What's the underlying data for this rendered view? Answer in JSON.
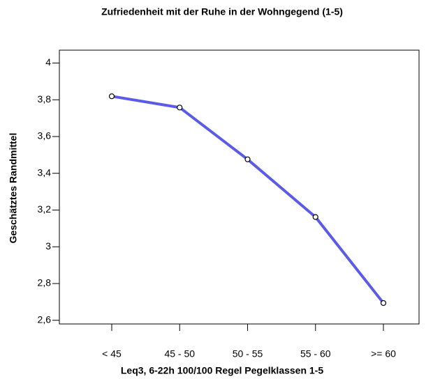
{
  "chart_data": {
    "type": "line",
    "title": "Zufriedenheit mit der Ruhe in der Wohngegend (1-5)",
    "x_label": "Leq3, 6-22h 100/100 Regel Pegelklassen 1-5",
    "y_label": "Geschätztes Randmittel",
    "categories": [
      "< 45",
      "45 - 50",
      "50 - 55",
      "55 - 60",
      ">= 60"
    ],
    "series": [
      {
        "color": "#5b5be8",
        "values": [
          3.819,
          3.758,
          3.476,
          3.162,
          2.694
        ]
      }
    ],
    "ylim": [
      2.58,
      4.07
    ],
    "yticks": [
      {
        "value": 2.6,
        "label": "2,6"
      },
      {
        "value": 2.8,
        "label": "2,8"
      },
      3,
      {
        "value": 3.2,
        "label": "3,2"
      },
      {
        "value": 3.4,
        "label": "3,4"
      },
      {
        "value": 3.6,
        "label": "3,6"
      },
      {
        "value": 3.8,
        "label": "3,8"
      },
      4
    ],
    "grid": false
  }
}
